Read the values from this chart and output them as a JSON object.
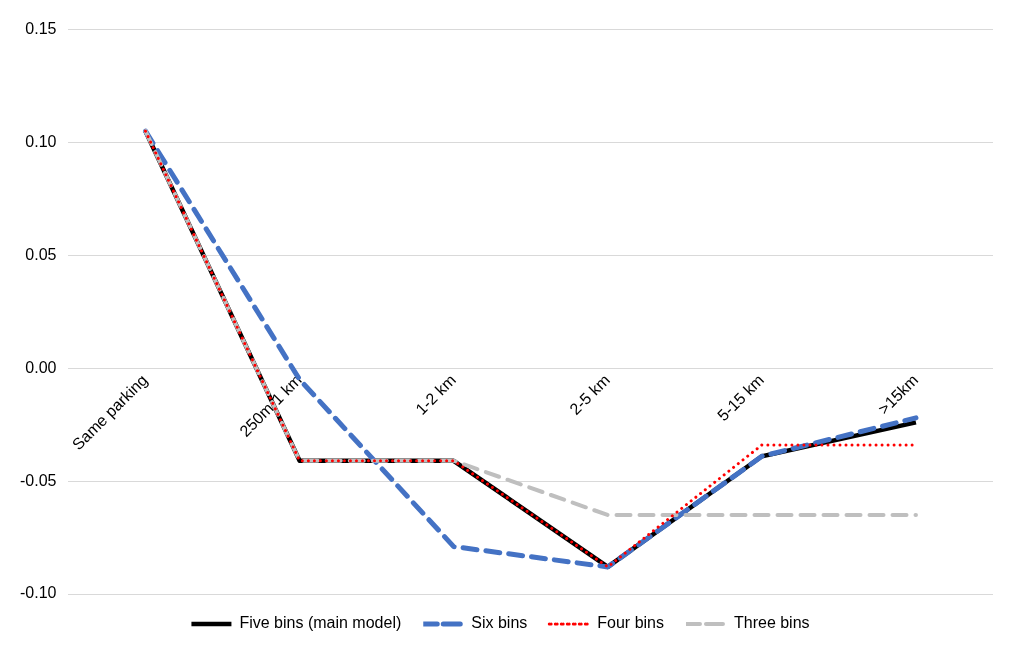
{
  "chart_data": {
    "type": "line",
    "categories": [
      "Same parking",
      "250m-1 km",
      "1-2 km",
      "2-5 km",
      "5-15 km",
      ">15km"
    ],
    "series": [
      {
        "name": "Five bins (main model)",
        "color": "#000000",
        "line_style": "solid",
        "values": [
          0.105,
          -0.041,
          -0.041,
          -0.088,
          -0.039,
          -0.024
        ]
      },
      {
        "name": "Six bins",
        "color": "#4472c4",
        "line_style": "dashed",
        "values": [
          0.105,
          -0.005,
          -0.079,
          -0.088,
          -0.039,
          -0.022
        ]
      },
      {
        "name": "Four bins",
        "color": "#ff0000",
        "line_style": "dotted",
        "values": [
          0.105,
          -0.041,
          -0.041,
          -0.088,
          -0.034,
          -0.034
        ]
      },
      {
        "name": "Three bins",
        "color": "#bfbfbf",
        "line_style": "dashed",
        "values": [
          0.105,
          -0.041,
          -0.041,
          -0.065,
          -0.065,
          -0.065
        ]
      }
    ],
    "ylim": [
      -0.1,
      0.15
    ],
    "yticks": [
      {
        "value": -0.1,
        "label": "-0.10"
      },
      {
        "value": -0.05,
        "label": "-0.05"
      },
      {
        "value": 0,
        "label": "0.00"
      },
      {
        "value": 0.05,
        "label": "0.05"
      },
      {
        "value": 0.1,
        "label": "0.10"
      },
      {
        "value": 0.15,
        "label": "0.15"
      }
    ],
    "grid": "y",
    "legend": "bottom",
    "marker": "none"
  }
}
